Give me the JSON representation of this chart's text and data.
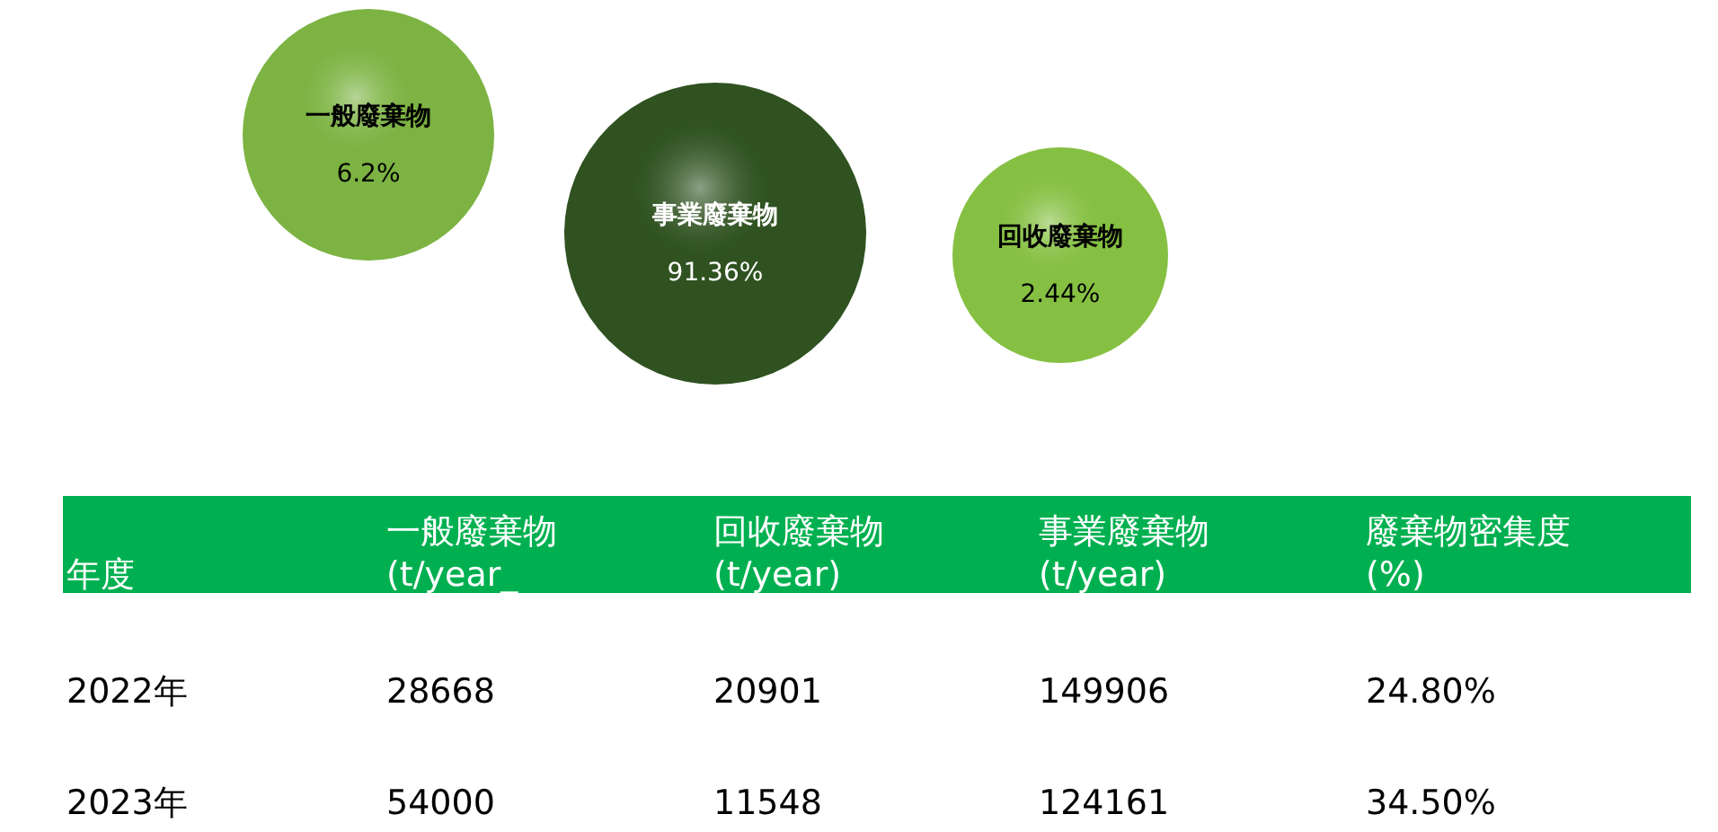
{
  "chart_data": [
    {
      "type": "other",
      "categories": [
        "一般廢棄物",
        "事業廢棄物",
        "回收廢棄物"
      ],
      "values": [
        6.2,
        91.36,
        2.44
      ],
      "value_labels": [
        "6.2%",
        "91.36%",
        "2.44%"
      ],
      "colors": [
        "#7cb342",
        "#2f5220",
        "#86c043"
      ]
    },
    {
      "type": "other",
      "legend_title": "年度",
      "categories": [
        "一般廢棄物 (t/year_",
        "回收廢棄物 (t/year)",
        "事業廢棄物 (t/year)",
        "廢棄物密集度 (%)"
      ],
      "series": [
        {
          "name": "2022年",
          "values": [
            28668,
            20901,
            149906,
            24.8
          ],
          "value_labels": [
            "28668",
            "20901",
            "149906",
            "24.80%"
          ]
        },
        {
          "name": "2023年",
          "values": [
            54000,
            11548,
            124161,
            34.5
          ],
          "value_labels": [
            "54000",
            "11548",
            "124161",
            "34.50%"
          ]
        }
      ]
    }
  ]
}
